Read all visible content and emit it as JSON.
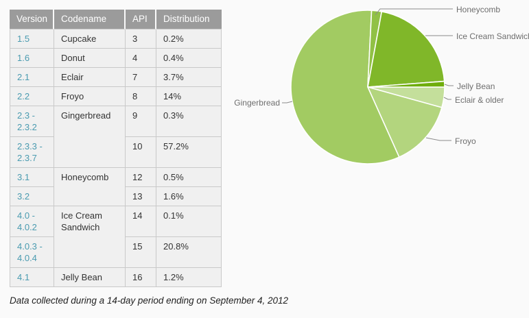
{
  "table": {
    "headers": [
      "Version",
      "Codename",
      "API",
      "Distribution"
    ],
    "rows": [
      {
        "version": "1.5",
        "codename": "Cupcake",
        "codename_rowspan": 1,
        "api": "3",
        "distribution": "0.2%"
      },
      {
        "version": "1.6",
        "codename": "Donut",
        "codename_rowspan": 1,
        "api": "4",
        "distribution": "0.4%"
      },
      {
        "version": "2.1",
        "codename": "Eclair",
        "codename_rowspan": 1,
        "api": "7",
        "distribution": "3.7%"
      },
      {
        "version": "2.2",
        "codename": "Froyo",
        "codename_rowspan": 1,
        "api": "8",
        "distribution": "14%"
      },
      {
        "version": "2.3 -\n2.3.2",
        "codename": "Gingerbread",
        "codename_rowspan": 2,
        "api": "9",
        "distribution": "0.3%"
      },
      {
        "version": "2.3.3 -\n2.3.7",
        "codename": null,
        "codename_rowspan": 0,
        "api": "10",
        "distribution": "57.2%"
      },
      {
        "version": "3.1",
        "codename": "Honeycomb",
        "codename_rowspan": 2,
        "api": "12",
        "distribution": "0.5%"
      },
      {
        "version": "3.2",
        "codename": null,
        "codename_rowspan": 0,
        "api": "13",
        "distribution": "1.6%"
      },
      {
        "version": "4.0 -\n4.0.2",
        "codename": "Ice Cream Sandwich",
        "codename_rowspan": 2,
        "api": "14",
        "distribution": "0.1%"
      },
      {
        "version": "4.0.3 -\n4.0.4",
        "codename": null,
        "codename_rowspan": 0,
        "api": "15",
        "distribution": "20.8%"
      },
      {
        "version": "4.1",
        "codename": "Jelly Bean",
        "codename_rowspan": 1,
        "api": "16",
        "distribution": "1.2%"
      }
    ]
  },
  "footer": {
    "note": "Data collected during a 14-day period ending on September 4, 2012"
  },
  "chart_data": {
    "type": "pie",
    "title": "",
    "legend_position": "callout-labels",
    "start_angle_clockwise_from_top_deg": 90,
    "slice_border_color": "#ffffff",
    "slices": [
      {
        "label": "Eclair & older",
        "value": 4.3,
        "color": "#c4df9b"
      },
      {
        "label": "Froyo",
        "value": 14.0,
        "color": "#b3d57e"
      },
      {
        "label": "Gingerbread",
        "value": 57.5,
        "color": "#a2cb62"
      },
      {
        "label": "Honeycomb",
        "value": 2.1,
        "color": "#91c145"
      },
      {
        "label": "Ice Cream Sandwich",
        "value": 20.9,
        "color": "#80b729"
      },
      {
        "label": "Jelly Bean",
        "value": 1.2,
        "color": "#6fad0c"
      }
    ]
  },
  "colors": {
    "page_bg": "#fafafa",
    "table_header_bg": "#9b9b9b",
    "table_header_text": "#ffffff",
    "table_cell_bg": "#f0f0f0",
    "table_border": "#c9c9c9",
    "version_link": "#4a9bb0",
    "body_text": "#333333",
    "callout_label_text": "#6e6e6e",
    "leader_line": "#8a8a8a",
    "footnote_text": "#222222"
  }
}
